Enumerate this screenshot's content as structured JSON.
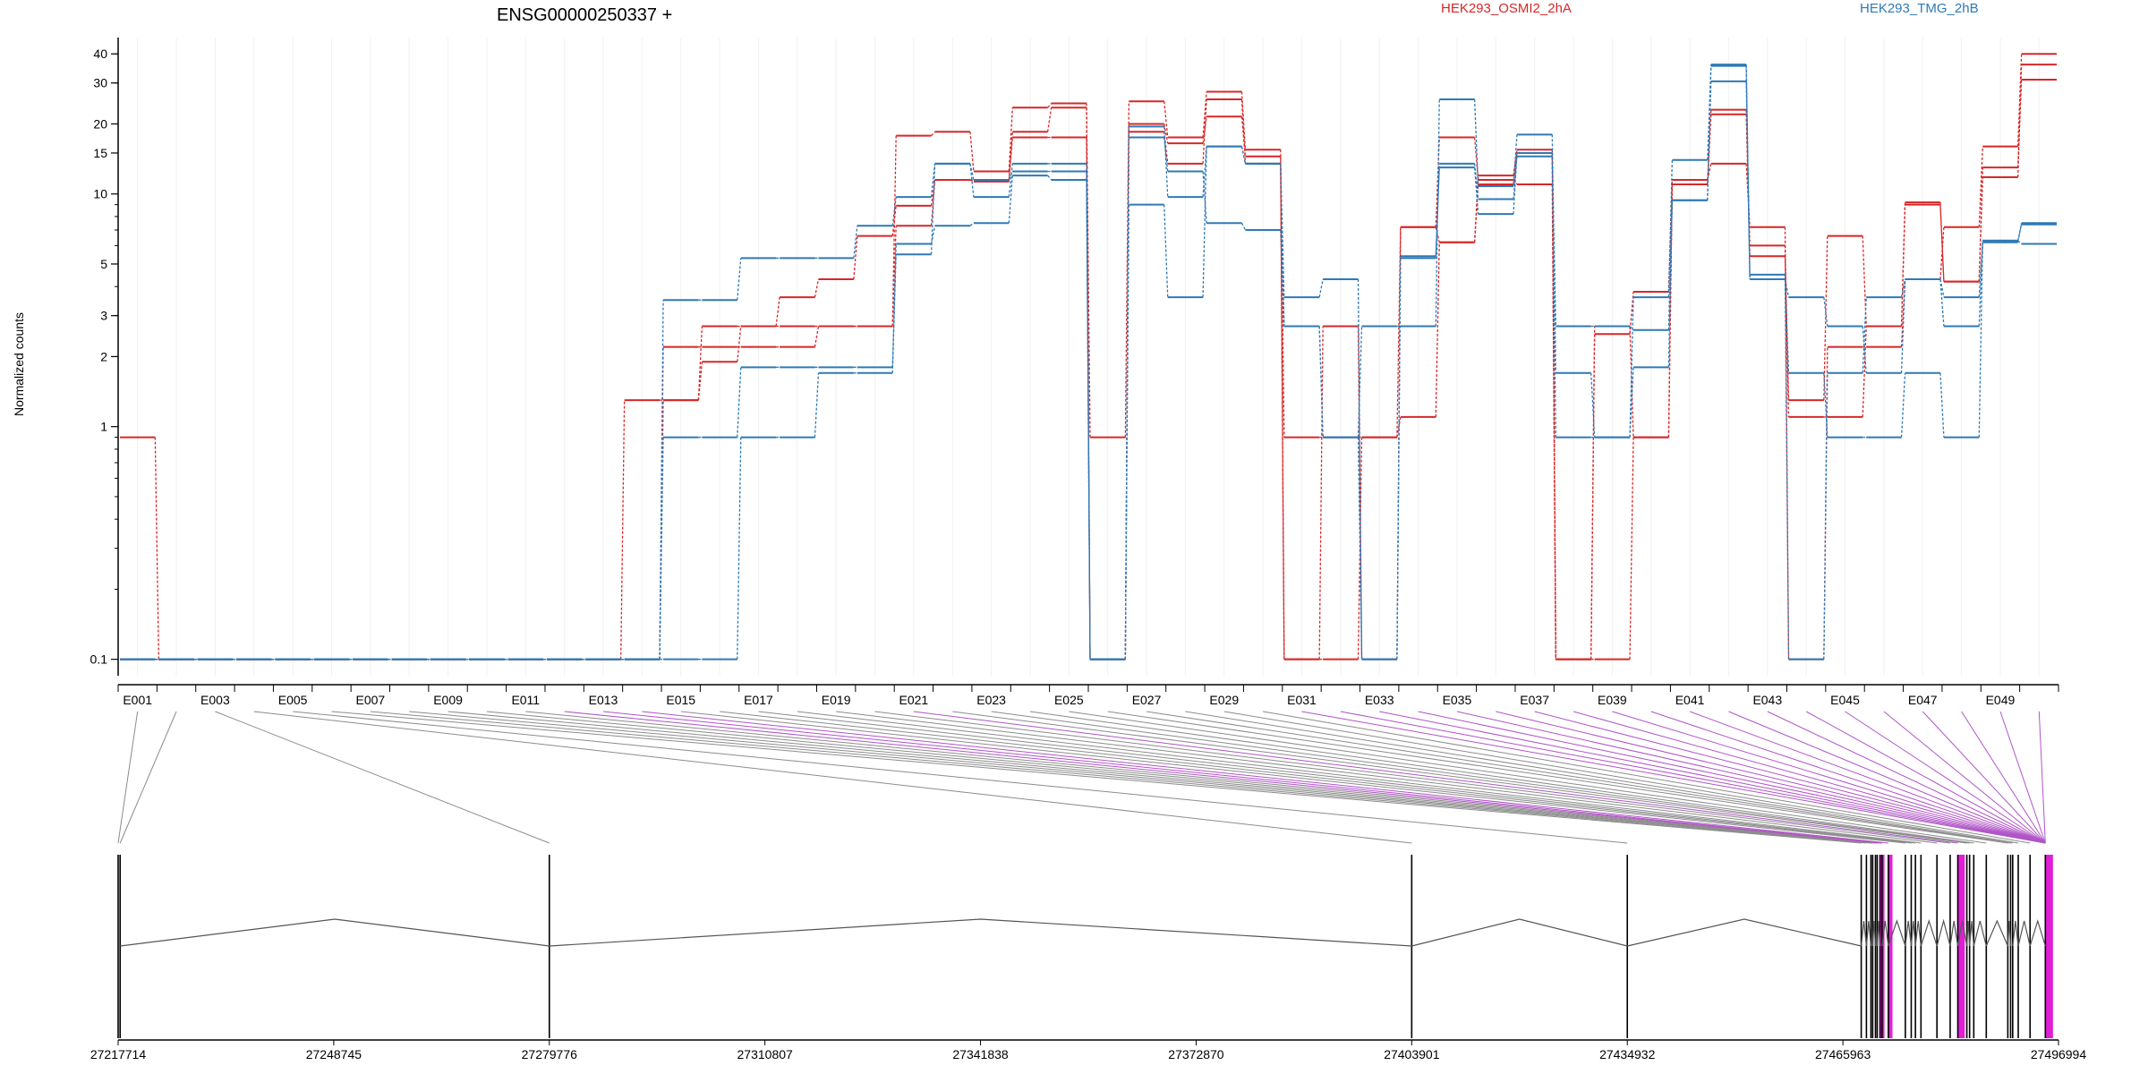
{
  "chart_data": {
    "type": "line",
    "title": "ENSG00000250337 +",
    "ylabel": "Normalized counts",
    "yscale": "log",
    "ylim": [
      0.085,
      47
    ],
    "yticks": [
      0.1,
      1,
      2,
      3,
      5,
      10,
      15,
      20,
      30,
      40
    ],
    "ytick_labels": [
      "0.1",
      "1",
      "2",
      "3",
      "5",
      "10",
      "15",
      "20",
      "30",
      "40"
    ],
    "grid": true,
    "legend_position": "top",
    "exons": [
      "E001",
      "E002",
      "E003",
      "E004",
      "E005",
      "E006",
      "E007",
      "E008",
      "E009",
      "E010",
      "E011",
      "E012",
      "E013",
      "E014",
      "E015",
      "E016",
      "E017",
      "E018",
      "E019",
      "E020",
      "E021",
      "E022",
      "E023",
      "E024",
      "E025",
      "E026",
      "E027",
      "E028",
      "E029",
      "E030",
      "E031",
      "E032",
      "E033",
      "E034",
      "E035",
      "E036",
      "E037",
      "E038",
      "E039",
      "E040",
      "E041",
      "E042",
      "E043",
      "E044",
      "E045",
      "E046",
      "E047",
      "E048",
      "E049",
      "E050"
    ],
    "exon_labels_shown": [
      "E001",
      "E003",
      "E005",
      "E007",
      "E009",
      "E011",
      "E013",
      "E015",
      "E017",
      "E019",
      "E021",
      "E023",
      "E025",
      "E027",
      "E029",
      "E031",
      "E033",
      "E035",
      "E037",
      "E039",
      "E041",
      "E043",
      "E045",
      "E047",
      "E049"
    ],
    "groups": [
      {
        "name": "HEK293_OSMI2_2hA",
        "color": "#d62728"
      },
      {
        "name": "HEK293_TMG_2hB",
        "color": "#2e79b6"
      }
    ],
    "series": [
      {
        "group": "HEK293_OSMI2_2hA",
        "values": [
          0.9,
          0.1,
          0.1,
          0.1,
          0.1,
          0.1,
          0.1,
          0.1,
          0.1,
          0.1,
          0.1,
          0.1,
          0.1,
          0.1,
          1.3,
          1.9,
          2.7,
          3.6,
          4.3,
          6.6,
          8.9,
          11.5,
          11.3,
          17.5,
          17.5,
          0.1,
          20,
          16.5,
          21.5,
          14.5,
          0.1,
          0.1,
          0.9,
          1.1,
          6.2,
          11,
          15,
          0.1,
          0.1,
          0.9,
          11,
          22,
          6,
          1.1,
          1.1,
          2.7,
          9,
          4.2,
          13,
          31
        ]
      },
      {
        "group": "HEK293_OSMI2_2hA",
        "values": [
          0.1,
          0.1,
          0.1,
          0.1,
          0.1,
          0.1,
          0.1,
          0.1,
          0.1,
          0.1,
          0.1,
          0.1,
          0.1,
          1.3,
          1.3,
          2.7,
          2.7,
          2.7,
          2.7,
          2.7,
          7.3,
          11.5,
          11.5,
          18.5,
          23.5,
          0.1,
          18.5,
          13.5,
          25.5,
          13.5,
          0.1,
          2.7,
          0.1,
          7.2,
          17.5,
          11.5,
          11,
          0.1,
          2.7,
          0.9,
          11,
          23,
          5.4,
          1.3,
          6.6,
          2.7,
          9.2,
          4.2,
          11.8,
          36
        ]
      },
      {
        "group": "HEK293_OSMI2_2hA",
        "values": [
          0.1,
          0.1,
          0.1,
          0.1,
          0.1,
          0.1,
          0.1,
          0.1,
          0.1,
          0.1,
          0.1,
          0.1,
          0.1,
          0.1,
          2.2,
          2.2,
          2.2,
          2.2,
          2.7,
          2.7,
          17.8,
          18.5,
          12.5,
          23.5,
          24.5,
          0.9,
          25,
          17.5,
          27.5,
          15.5,
          0.9,
          0.9,
          0.9,
          7.2,
          6.2,
          12,
          15.5,
          0.1,
          2.5,
          3.8,
          11.5,
          13.5,
          7.2,
          0.1,
          2.2,
          2.2,
          4.3,
          7.2,
          16,
          40
        ]
      },
      {
        "group": "HEK293_TMG_2hB",
        "values": [
          0.1,
          0.1,
          0.1,
          0.1,
          0.1,
          0.1,
          0.1,
          0.1,
          0.1,
          0.1,
          0.1,
          0.1,
          0.1,
          0.1,
          3.5,
          3.5,
          5.3,
          5.3,
          5.3,
          7.3,
          9.7,
          13.5,
          9.7,
          13.5,
          13.5,
          0.1,
          19.5,
          9.7,
          16,
          13.5,
          3.6,
          4.3,
          0.1,
          5.3,
          13.5,
          9.5,
          14.5,
          2.7,
          2.7,
          2.6,
          9.4,
          36,
          4.3,
          3.6,
          2.7,
          1.7,
          4.3,
          3.6,
          6.2,
          7.5
        ]
      },
      {
        "group": "HEK293_TMG_2hB",
        "values": [
          0.1,
          0.1,
          0.1,
          0.1,
          0.1,
          0.1,
          0.1,
          0.1,
          0.1,
          0.1,
          0.1,
          0.1,
          0.1,
          0.1,
          0.9,
          0.9,
          1.8,
          1.8,
          1.8,
          1.8,
          5.5,
          13.5,
          11.5,
          12.5,
          12.5,
          0.1,
          9,
          3.6,
          16,
          13.5,
          2.7,
          0.9,
          0.1,
          5.4,
          13,
          8.2,
          15,
          0.9,
          0.9,
          1.8,
          9.4,
          30.5,
          4.3,
          1.7,
          0.9,
          0.9,
          1.7,
          0.9,
          6.3,
          6.1
        ]
      },
      {
        "group": "HEK293_TMG_2hB",
        "values": [
          0.1,
          0.1,
          0.1,
          0.1,
          0.1,
          0.1,
          0.1,
          0.1,
          0.1,
          0.1,
          0.1,
          0.1,
          0.1,
          0.1,
          0.1,
          0.1,
          0.9,
          0.9,
          1.7,
          1.7,
          6.1,
          7.3,
          7.5,
          12,
          11.5,
          0.1,
          17.5,
          12.5,
          7.5,
          7,
          2.7,
          0.9,
          2.7,
          2.7,
          25.5,
          10.8,
          18,
          1.7,
          0.9,
          3.6,
          14,
          35.5,
          4.5,
          0.1,
          1.7,
          3.6,
          4.3,
          2.7,
          6.3,
          7.4
        ]
      }
    ],
    "gene_model": {
      "coord_start": 27217714,
      "coord_end": 27496994,
      "coord_ticks": [
        27217714,
        27248745,
        27279776,
        27310807,
        27341838,
        27372870,
        27403901,
        27434932,
        27465963,
        27496994
      ],
      "coord_tick_labels": [
        "27217714",
        "27248745",
        "27279776",
        "27310807",
        "27341838",
        "27372870",
        "27403901",
        "27434932",
        "27465963",
        "27496994"
      ],
      "exon_starts": [
        27217714,
        27218000,
        27279776,
        27403901,
        27434932,
        27468600,
        27469350,
        27470000,
        27470250,
        27470650,
        27470900,
        27471300,
        27471600,
        27472500,
        27474950,
        27475800,
        27476400,
        27477200,
        27479500,
        27481400,
        27482500,
        27483800,
        27484200,
        27484800,
        27486600,
        27489700,
        27490100,
        27490400,
        27491200,
        27492900,
        27495100
      ],
      "highlight_exons": [
        [
          27471300,
          27471950
        ],
        [
          27472500,
          27473100
        ],
        [
          27482500,
          27483500
        ],
        [
          27495100,
          27496200
        ]
      ]
    }
  }
}
